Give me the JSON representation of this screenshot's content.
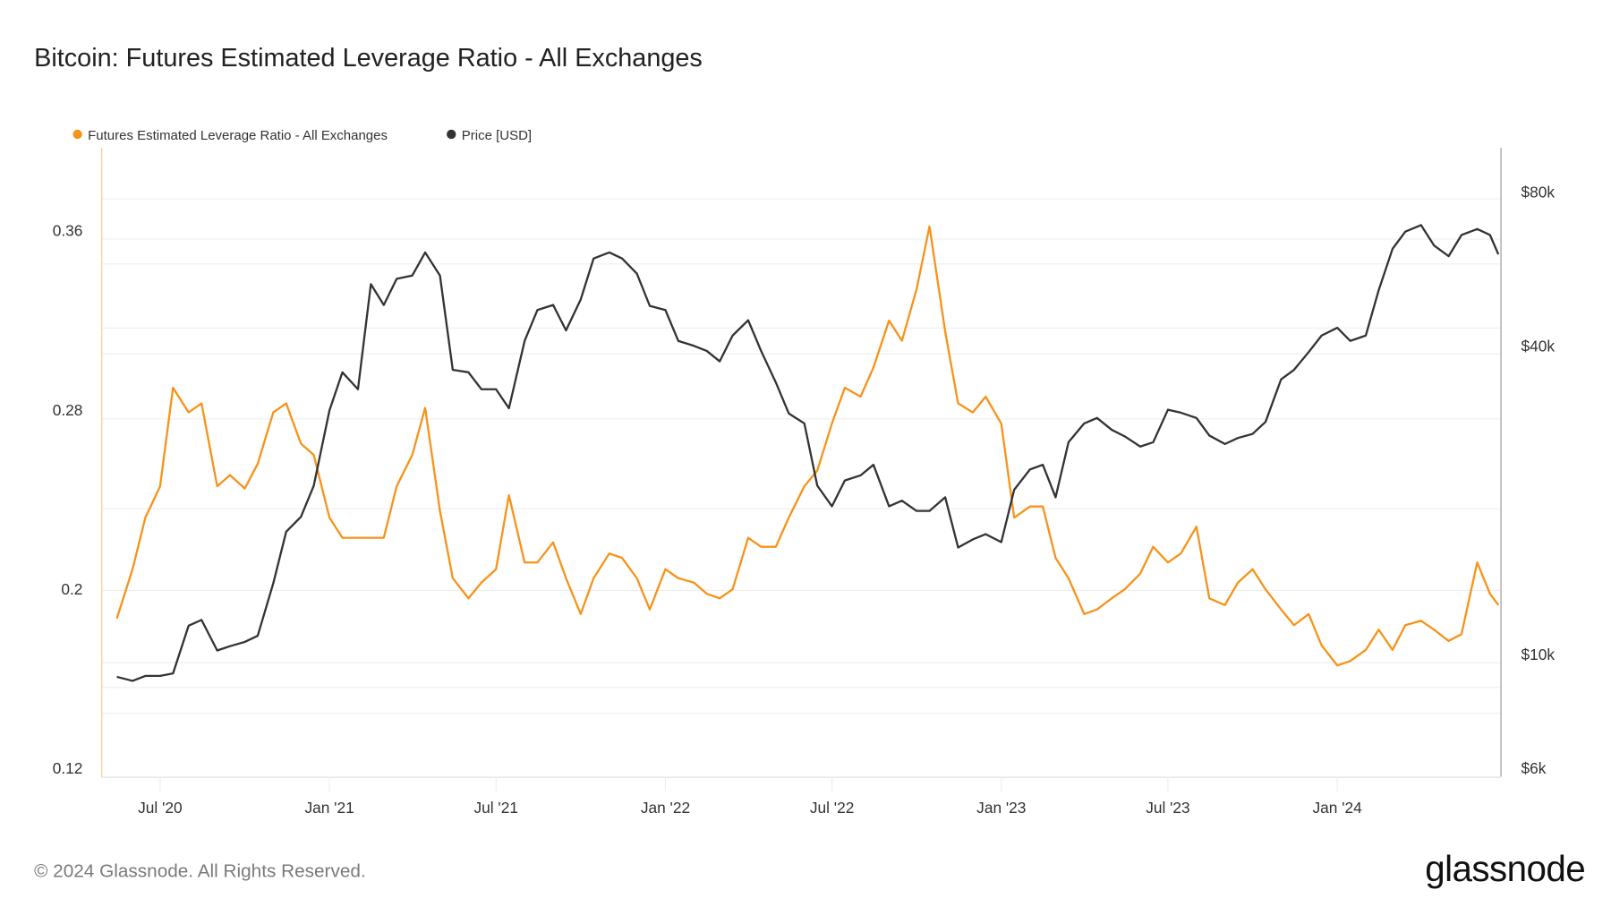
{
  "title": "Bitcoin: Futures Estimated Leverage Ratio - All Exchanges",
  "legend": [
    {
      "label": "Futures Estimated Leverage Ratio - All Exchanges",
      "color": "#f7931a"
    },
    {
      "label": "Price [USD]",
      "color": "#333333"
    }
  ],
  "footer": {
    "copyright": "© 2024 Glassnode. All Rights Reserved.",
    "logo": "glassnode"
  },
  "chart_data": {
    "type": "line",
    "title": "Bitcoin: Futures Estimated Leverage Ratio - All Exchanges",
    "grid": true,
    "legend_position": "top-left",
    "x": [
      "2020-05-15",
      "2020-06-01",
      "2020-06-15",
      "2020-07-01",
      "2020-07-15",
      "2020-08-01",
      "2020-08-15",
      "2020-09-01",
      "2020-09-15",
      "2020-10-01",
      "2020-10-15",
      "2020-11-01",
      "2020-11-15",
      "2020-12-01",
      "2020-12-15",
      "2021-01-01",
      "2021-01-15",
      "2021-02-01",
      "2021-02-15",
      "2021-03-01",
      "2021-03-15",
      "2021-04-01",
      "2021-04-15",
      "2021-05-01",
      "2021-05-15",
      "2021-06-01",
      "2021-06-15",
      "2021-07-01",
      "2021-07-15",
      "2021-08-01",
      "2021-08-15",
      "2021-09-01",
      "2021-09-15",
      "2021-10-01",
      "2021-10-15",
      "2021-11-01",
      "2021-11-15",
      "2021-12-01",
      "2021-12-15",
      "2022-01-01",
      "2022-01-15",
      "2022-02-01",
      "2022-02-15",
      "2022-03-01",
      "2022-03-15",
      "2022-04-01",
      "2022-04-15",
      "2022-05-01",
      "2022-05-15",
      "2022-06-01",
      "2022-06-15",
      "2022-07-01",
      "2022-07-15",
      "2022-08-01",
      "2022-08-15",
      "2022-09-01",
      "2022-09-15",
      "2022-10-01",
      "2022-10-15",
      "2022-11-01",
      "2022-11-15",
      "2022-12-01",
      "2022-12-15",
      "2023-01-01",
      "2023-01-15",
      "2023-02-01",
      "2023-02-15",
      "2023-03-01",
      "2023-03-15",
      "2023-04-01",
      "2023-04-15",
      "2023-05-01",
      "2023-05-15",
      "2023-06-01",
      "2023-06-15",
      "2023-07-01",
      "2023-07-15",
      "2023-08-01",
      "2023-08-15",
      "2023-09-01",
      "2023-09-15",
      "2023-10-01",
      "2023-10-15",
      "2023-11-01",
      "2023-11-15",
      "2023-12-01",
      "2023-12-15",
      "2024-01-01",
      "2024-01-15",
      "2024-02-01",
      "2024-02-15",
      "2024-03-01",
      "2024-03-15",
      "2024-04-01",
      "2024-04-15",
      "2024-05-01",
      "2024-05-15",
      "2024-06-01",
      "2024-06-15",
      "2024-06-24"
    ],
    "series": [
      {
        "name": "Futures Estimated Leverage Ratio - All Exchanges",
        "axis": "left",
        "color": "#f7931a",
        "values": [
          0.187,
          0.209,
          0.232,
          0.246,
          0.29,
          0.279,
          0.283,
          0.246,
          0.251,
          0.245,
          0.256,
          0.279,
          0.283,
          0.265,
          0.26,
          0.232,
          0.223,
          0.223,
          0.223,
          0.223,
          0.246,
          0.26,
          0.281,
          0.235,
          0.205,
          0.196,
          0.203,
          0.209,
          0.242,
          0.212,
          0.212,
          0.221,
          0.205,
          0.189,
          0.205,
          0.216,
          0.214,
          0.205,
          0.191,
          0.209,
          0.205,
          0.203,
          0.198,
          0.196,
          0.2,
          0.223,
          0.219,
          0.219,
          0.232,
          0.246,
          0.253,
          0.274,
          0.29,
          0.286,
          0.299,
          0.32,
          0.311,
          0.334,
          0.362,
          0.315,
          0.283,
          0.279,
          0.286,
          0.274,
          0.232,
          0.237,
          0.237,
          0.214,
          0.205,
          0.189,
          0.191,
          0.196,
          0.2,
          0.207,
          0.219,
          0.212,
          0.216,
          0.228,
          0.196,
          0.193,
          0.203,
          0.209,
          0.2,
          0.191,
          0.184,
          0.189,
          0.175,
          0.166,
          0.168,
          0.173,
          0.182,
          0.173,
          0.184,
          0.186,
          0.182,
          0.177,
          0.18,
          0.212,
          0.198,
          0.193
        ]
      },
      {
        "name": "Price [USD]",
        "axis": "right",
        "color": "#333333",
        "values": [
          9060,
          8900,
          9100,
          9100,
          9200,
          11400,
          11700,
          10200,
          10400,
          10600,
          10900,
          13800,
          17400,
          18600,
          21400,
          30000,
          35600,
          33000,
          52900,
          48200,
          54200,
          55000,
          61000,
          55000,
          36000,
          35600,
          33000,
          33000,
          30300,
          41000,
          47100,
          48200,
          43000,
          49400,
          59400,
          61000,
          59400,
          55500,
          48000,
          47100,
          41000,
          40100,
          39200,
          37400,
          42000,
          45000,
          39200,
          34000,
          29600,
          28300,
          21400,
          19500,
          21900,
          22400,
          23500,
          19500,
          20000,
          19100,
          19100,
          20300,
          16200,
          16800,
          17200,
          16600,
          21000,
          23000,
          23500,
          20300,
          26000,
          28300,
          29000,
          27500,
          26700,
          25500,
          26000,
          30100,
          29700,
          29000,
          26800,
          25800,
          26500,
          27000,
          28500,
          34500,
          36000,
          39000,
          42000,
          43500,
          41000,
          42000,
          51500,
          62000,
          67000,
          69000,
          63000,
          60000,
          66000,
          67800,
          66000,
          60500
        ]
      }
    ],
    "left_axis": {
      "scale": "linear",
      "range": [
        0.12,
        0.4
      ],
      "ticks": [
        0.12,
        0.2,
        0.28,
        0.36
      ],
      "tick_labels": [
        "0.12",
        "0.2",
        "0.28",
        "0.36"
      ]
    },
    "right_axis": {
      "scale": "log",
      "range": [
        6000,
        98000
      ],
      "ticks": [
        6000,
        10000,
        40000,
        80000
      ],
      "tick_labels": [
        "$6k",
        "$10k",
        "$40k",
        "$80k"
      ]
    },
    "x_ticks": [
      {
        "date": "2020-07-01",
        "label": "Jul '20"
      },
      {
        "date": "2021-01-01",
        "label": "Jan '21"
      },
      {
        "date": "2021-07-01",
        "label": "Jul '21"
      },
      {
        "date": "2022-01-01",
        "label": "Jan '22"
      },
      {
        "date": "2022-07-01",
        "label": "Jul '22"
      },
      {
        "date": "2023-01-01",
        "label": "Jan '23"
      },
      {
        "date": "2023-07-01",
        "label": "Jul '23"
      },
      {
        "date": "2024-01-01",
        "label": "Jan '24"
      }
    ]
  }
}
